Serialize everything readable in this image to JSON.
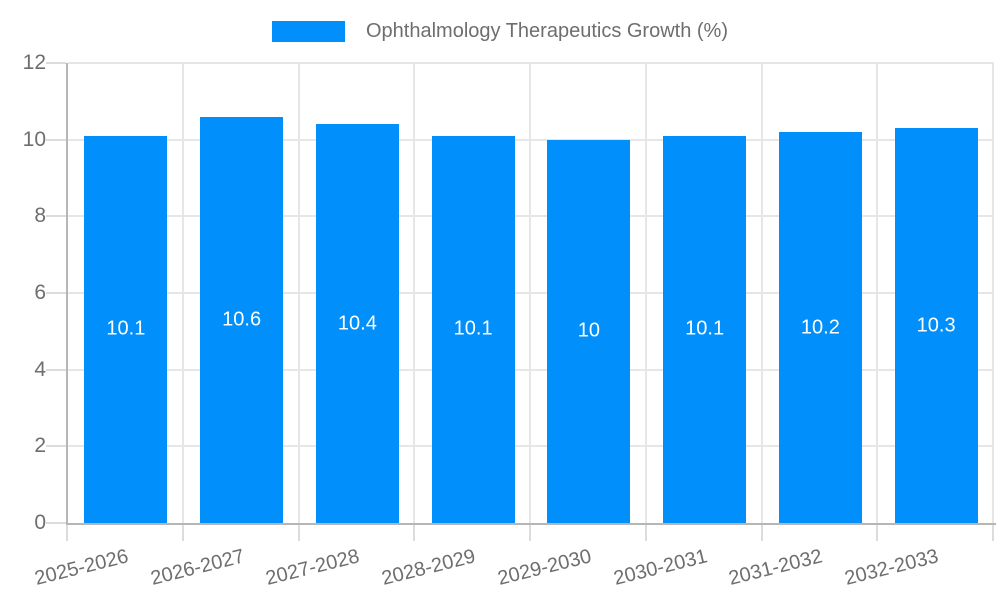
{
  "legend": {
    "label": "Ophthalmology Therapeutics Growth (%)",
    "swatch_color": "#008FFB"
  },
  "chart_data": {
    "type": "bar",
    "title": "Ophthalmology Therapeutics Growth (%)",
    "series_name": "Ophthalmology Therapeutics Growth (%)",
    "categories": [
      "2025-2026",
      "2026-2027",
      "2027-2028",
      "2028-2029",
      "2029-2030",
      "2030-2031",
      "2031-2032",
      "2032-2033"
    ],
    "values": [
      10.1,
      10.6,
      10.4,
      10.1,
      10,
      10.1,
      10.2,
      10.3
    ],
    "value_labels": [
      "10.1",
      "10.6",
      "10.4",
      "10.1",
      "10",
      "10.1",
      "10.2",
      "10.3"
    ],
    "xlabel": "",
    "ylabel": "",
    "ylim": [
      0,
      12
    ],
    "yticks": [
      0,
      2,
      4,
      6,
      8,
      10,
      12
    ],
    "ytick_labels": [
      "0",
      "2",
      "4",
      "6",
      "8",
      "10",
      "12"
    ],
    "grid": true,
    "legend_position": "top",
    "colors": {
      "bar": "#008FFB",
      "gridline": "#e6e6e6",
      "axis_line": "#b6b6b6",
      "tick": "#dcdcdc",
      "axis_text": "#6e6e6e",
      "value_label_text": "#ffffff",
      "background": "#ffffff"
    }
  }
}
